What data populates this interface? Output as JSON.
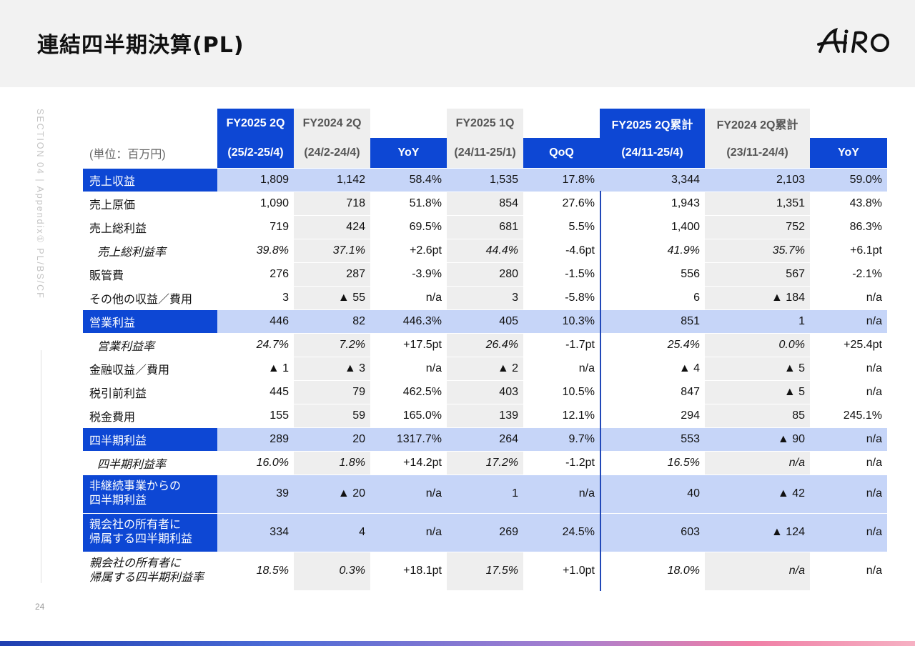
{
  "title": "連結四半期決算(PL)",
  "logo": {
    "text": "AIRO"
  },
  "side_label": "SECTION 04 | Appendix① PL/BS/CF",
  "page_number": "24",
  "colors": {
    "primary_blue": "#0d47d4",
    "light_blue": "#c6d5f8",
    "grey": "#eeeeee"
  },
  "table": {
    "unit_label": "(単位：百万円)",
    "header_top": [
      "FY2025 2Q",
      "FY2024 2Q",
      "",
      "FY2025 1Q",
      "",
      "FY2025 2Q累計",
      "FY2024 2Q累計",
      ""
    ],
    "header_sub": [
      "(25/2-25/4)",
      "(24/2-24/4)",
      "YoY",
      "(24/11-25/1)",
      "QoQ",
      "(24/11-25/4)",
      "(23/11-24/4)",
      "YoY"
    ],
    "rows": [
      {
        "label": "売上収益",
        "values": [
          "1,809",
          "1,142",
          "58.4%",
          "1,535",
          "17.8%",
          "3,344",
          "2,103",
          "59.0%"
        ]
      },
      {
        "label": "売上原価",
        "values": [
          "1,090",
          "718",
          "51.8%",
          "854",
          "27.6%",
          "1,943",
          "1,351",
          "43.8%"
        ]
      },
      {
        "label": "売上総利益",
        "values": [
          "719",
          "424",
          "69.5%",
          "681",
          "5.5%",
          "1,400",
          "752",
          "86.3%"
        ]
      },
      {
        "label": "売上総利益率",
        "values": [
          "39.8%",
          "37.1%",
          "+2.6pt",
          "44.4%",
          "-4.6pt",
          "41.9%",
          "35.7%",
          "+6.1pt"
        ]
      },
      {
        "label": "販管費",
        "values": [
          "276",
          "287",
          "-3.9%",
          "280",
          "-1.5%",
          "556",
          "567",
          "-2.1%"
        ]
      },
      {
        "label": "その他の収益／費用",
        "values": [
          "3",
          "▲ 55",
          "n/a",
          "3",
          "-5.8%",
          "6",
          "▲ 184",
          "n/a"
        ]
      },
      {
        "label": "営業利益",
        "values": [
          "446",
          "82",
          "446.3%",
          "405",
          "10.3%",
          "851",
          "1",
          "n/a"
        ]
      },
      {
        "label": "営業利益率",
        "values": [
          "24.7%",
          "7.2%",
          "+17.5pt",
          "26.4%",
          "-1.7pt",
          "25.4%",
          "0.0%",
          "+25.4pt"
        ]
      },
      {
        "label": "金融収益／費用",
        "values": [
          "▲ 1",
          "▲ 3",
          "n/a",
          "▲ 2",
          "n/a",
          "▲ 4",
          "▲ 5",
          "n/a"
        ]
      },
      {
        "label": "税引前利益",
        "values": [
          "445",
          "79",
          "462.5%",
          "403",
          "10.5%",
          "847",
          "▲ 5",
          "n/a"
        ]
      },
      {
        "label": "税金費用",
        "values": [
          "155",
          "59",
          "165.0%",
          "139",
          "12.1%",
          "294",
          "85",
          "245.1%"
        ]
      },
      {
        "label": "四半期利益",
        "values": [
          "289",
          "20",
          "1317.7%",
          "264",
          "9.7%",
          "553",
          "▲ 90",
          "n/a"
        ]
      },
      {
        "label": "四半期利益率",
        "values": [
          "16.0%",
          "1.8%",
          "+14.2pt",
          "17.2%",
          "-1.2pt",
          "16.5%",
          "n/a",
          "n/a"
        ]
      },
      {
        "label": "非継続事業からの\n四半期利益",
        "values": [
          "39",
          "▲ 20",
          "n/a",
          "1",
          "n/a",
          "40",
          "▲ 42",
          "n/a"
        ]
      },
      {
        "label": "親会社の所有者に\n帰属する四半期利益",
        "values": [
          "334",
          "4",
          "n/a",
          "269",
          "24.5%",
          "603",
          "▲ 124",
          "n/a"
        ]
      },
      {
        "label": "親会社の所有者に\n帰属する四半期利益率",
        "values": [
          "18.5%",
          "0.3%",
          "+18.1pt",
          "17.5%",
          "+1.0pt",
          "18.0%",
          "n/a",
          "n/a"
        ]
      }
    ]
  }
}
